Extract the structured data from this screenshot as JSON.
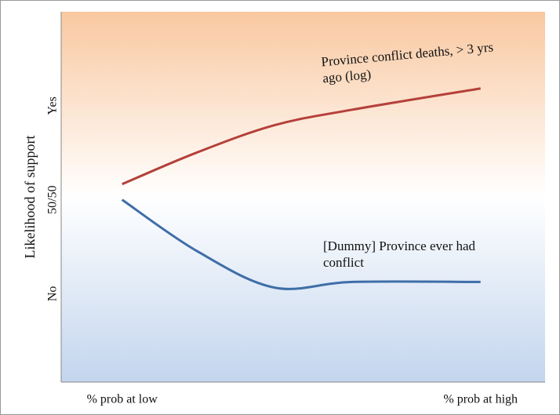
{
  "chart_data": {
    "type": "line",
    "ylabel": "Likelihood of support",
    "xlim": [
      -0.17,
      1.18
    ],
    "ylim": [
      -0.47,
      1.5
    ],
    "xticks": [
      {
        "value": 0,
        "label": "% prob at low"
      },
      {
        "value": 1,
        "label": "% prob at high"
      }
    ],
    "yticks": [
      {
        "value": 0,
        "label": "No"
      },
      {
        "value": 0.5,
        "label": "50/50"
      },
      {
        "value": 1,
        "label": "Yes"
      }
    ],
    "x": [
      0,
      0.207,
      0.424,
      0.642,
      1
    ],
    "series": [
      {
        "name": "Province conflict deaths, > 3 yrs ago (log)",
        "color": "#b5403a",
        "values": [
          0.583,
          0.75,
          0.896,
          0.979,
          1.092
        ]
      },
      {
        "name": "[Dummy] Province ever had conflict",
        "color": "#3f6ea8",
        "values": [
          0.5,
          0.229,
          0.033,
          0.0625,
          0.0625
        ]
      }
    ]
  }
}
